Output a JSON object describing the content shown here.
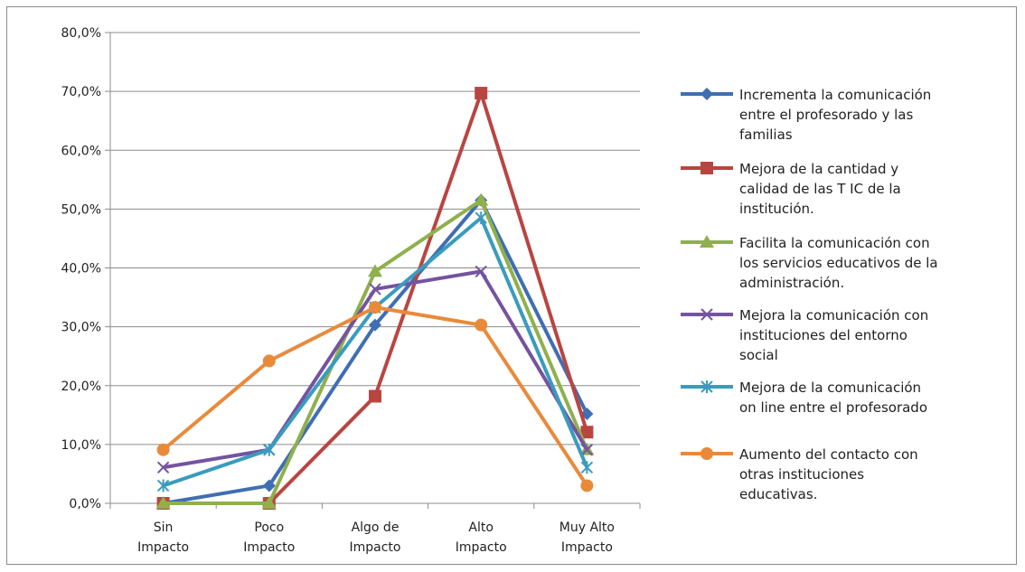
{
  "chart_data": {
    "type": "line",
    "categories": [
      [
        "Sin",
        "Impacto"
      ],
      [
        "Poco",
        "Impacto"
      ],
      [
        "Algo de",
        "Impacto"
      ],
      [
        "Alto",
        "Impacto"
      ],
      [
        "Muy Alto",
        "Impacto"
      ]
    ],
    "y_ticks": [
      "0,0%",
      "10,0%",
      "20,0%",
      "30,0%",
      "40,0%",
      "50,0%",
      "60,0%",
      "70,0%",
      "80,0%"
    ],
    "ylim": [
      0,
      80
    ],
    "y_unit": "%",
    "grid": "horizontal",
    "legend_position": "right",
    "series": [
      {
        "name": [
          "Incrementa la comunicación",
          "entre el profesorado y las",
          "familias"
        ],
        "color": "#3f6eb3",
        "marker": "diamond",
        "values": [
          0.0,
          3.0,
          30.3,
          51.5,
          15.2
        ]
      },
      {
        "name": [
          "Mejora de la cantidad y",
          "calidad de las T IC de la",
          "institución."
        ],
        "color": "#b94541",
        "marker": "square",
        "values": [
          0.0,
          0.0,
          18.2,
          69.7,
          12.1
        ]
      },
      {
        "name": [
          "Facilita la comunicación con",
          "los servicios educativos de la",
          "administración."
        ],
        "color": "#8fb04c",
        "marker": "triangle",
        "values": [
          0.0,
          0.0,
          39.4,
          51.5,
          9.1
        ]
      },
      {
        "name": [
          "Mejora la comunicación con",
          "instituciones del entorno",
          "social"
        ],
        "color": "#7553a0",
        "marker": "x",
        "values": [
          6.1,
          9.1,
          36.4,
          39.4,
          9.1
        ]
      },
      {
        "name": [
          "Mejora de la comunicación",
          "on line entre el profesorado"
        ],
        "color": "#3a9bbf",
        "marker": "star",
        "values": [
          3.0,
          9.1,
          33.3,
          48.5,
          6.1
        ]
      },
      {
        "name": [
          "Aumento del contacto con",
          "otras instituciones",
          "educativas."
        ],
        "color": "#e98a3b",
        "marker": "circle",
        "values": [
          9.1,
          24.2,
          33.3,
          30.3,
          3.0
        ]
      }
    ]
  }
}
